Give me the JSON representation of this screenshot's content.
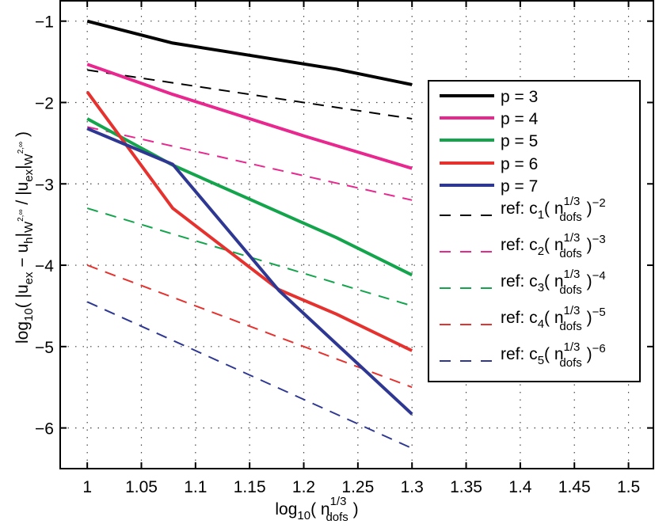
{
  "chart_data": {
    "type": "line",
    "title": "",
    "xlabel": "log10( n_dofs^(1/3) )",
    "ylabel": "log10( |u_ex − u_h|_{W^{2,∞}} / |u_ex|_{W^{2,∞}} )",
    "xlim": [
      0.975,
      1.523
    ],
    "ylim": [
      -6.5,
      -0.75
    ],
    "grid": true,
    "grid_style": "dotted",
    "legend_position": "upper right (inside)",
    "xticks": [
      1,
      1.05,
      1.1,
      1.15,
      1.2,
      1.25,
      1.3,
      1.35,
      1.4,
      1.45,
      1.5
    ],
    "xtick_labels": [
      "1",
      "1.05",
      "1.1",
      "1.15",
      "1.2",
      "1.25",
      "1.3",
      "1.35",
      "1.4",
      "1.45",
      "1.5"
    ],
    "yticks": [
      -1,
      -2,
      -3,
      -4,
      -5,
      -6
    ],
    "ytick_labels": [
      "−1",
      "−2",
      "−3",
      "−4",
      "−5",
      "−6"
    ],
    "series": [
      {
        "name": "p = 3",
        "color": "#000000",
        "style": "solid",
        "width": 4,
        "x": [
          1.0,
          1.079,
          1.23,
          1.3
        ],
        "y": [
          -1.0,
          -1.27,
          -1.59,
          -1.78
        ]
      },
      {
        "name": "p = 4",
        "color": "#e8288f",
        "style": "solid",
        "width": 4,
        "x": [
          1.0,
          1.079,
          1.2,
          1.3
        ],
        "y": [
          -1.53,
          -1.9,
          -2.41,
          -2.81
        ]
      },
      {
        "name": "p = 5",
        "color": "#13a44c",
        "style": "solid",
        "width": 4,
        "x": [
          1.0,
          1.079,
          1.23,
          1.3
        ],
        "y": [
          -2.2,
          -2.77,
          -3.66,
          -4.12
        ]
      },
      {
        "name": "p = 6",
        "color": "#e5322f",
        "style": "solid",
        "width": 4,
        "x": [
          1.0,
          1.079,
          1.177,
          1.23,
          1.3
        ],
        "y": [
          -1.87,
          -3.3,
          -4.3,
          -4.6,
          -5.05
        ]
      },
      {
        "name": "p = 7",
        "color": "#2e3892",
        "style": "solid",
        "width": 4,
        "x": [
          1.0,
          1.079,
          1.177,
          1.3
        ],
        "y": [
          -2.32,
          -2.76,
          -4.31,
          -5.83
        ]
      },
      {
        "name": "ref: c1( n_dofs^(1/3) )^-2",
        "color": "#000000",
        "style": "dashed",
        "width": 2,
        "legend": {
          "c": "1",
          "exp": "−2"
        },
        "x": [
          1.0,
          1.3
        ],
        "y": [
          -1.6,
          -2.2
        ]
      },
      {
        "name": "ref: c2( n_dofs^(1/3) )^-3",
        "color": "#e8288f",
        "style": "dashed",
        "width": 2,
        "legend": {
          "c": "2",
          "exp": "−3"
        },
        "x": [
          1.0,
          1.3
        ],
        "y": [
          -2.3,
          -3.2
        ]
      },
      {
        "name": "ref: c3( n_dofs^(1/3) )^-4",
        "color": "#13a44c",
        "style": "dashed",
        "width": 2,
        "legend": {
          "c": "3",
          "exp": "−4"
        },
        "x": [
          1.0,
          1.3
        ],
        "y": [
          -3.3,
          -4.5
        ]
      },
      {
        "name": "ref: c4( n_dofs^(1/3) )^-5",
        "color": "#e5322f",
        "style": "dashed",
        "width": 2,
        "legend": {
          "c": "4",
          "exp": "−5"
        },
        "x": [
          1.0,
          1.3
        ],
        "y": [
          -4.0,
          -5.5
        ]
      },
      {
        "name": "ref: c5( n_dofs^(1/3) )^-6",
        "color": "#2e3892",
        "style": "dashed",
        "width": 2,
        "legend": {
          "c": "5",
          "exp": "−6"
        },
        "x": [
          1.0,
          1.3
        ],
        "y": [
          -4.45,
          -6.25
        ]
      }
    ]
  },
  "labels": {
    "x_main": "log",
    "x_sub": "10",
    "x_open": "( n",
    "x_sup": "1/3",
    "x_subdofs": "dofs",
    "x_close": " )",
    "y_log": "log",
    "y_sub10": "10",
    "y_part1": "( |u",
    "y_ex": "ex",
    "y_minus": " − u",
    "y_h": "h",
    "y_bar1": "|",
    "y_W1": "W",
    "y_sup1": "2,∞",
    "y_div": " / |u",
    "y_ex2": "ex",
    "y_bar2": "|",
    "y_W2": "W",
    "y_sup2": "2,∞",
    "y_close": " )",
    "legend_ref_prefix": "ref: c",
    "legend_open": "( n",
    "legend_sup": "1/3",
    "legend_sub": "dofs",
    "legend_close": " )"
  }
}
